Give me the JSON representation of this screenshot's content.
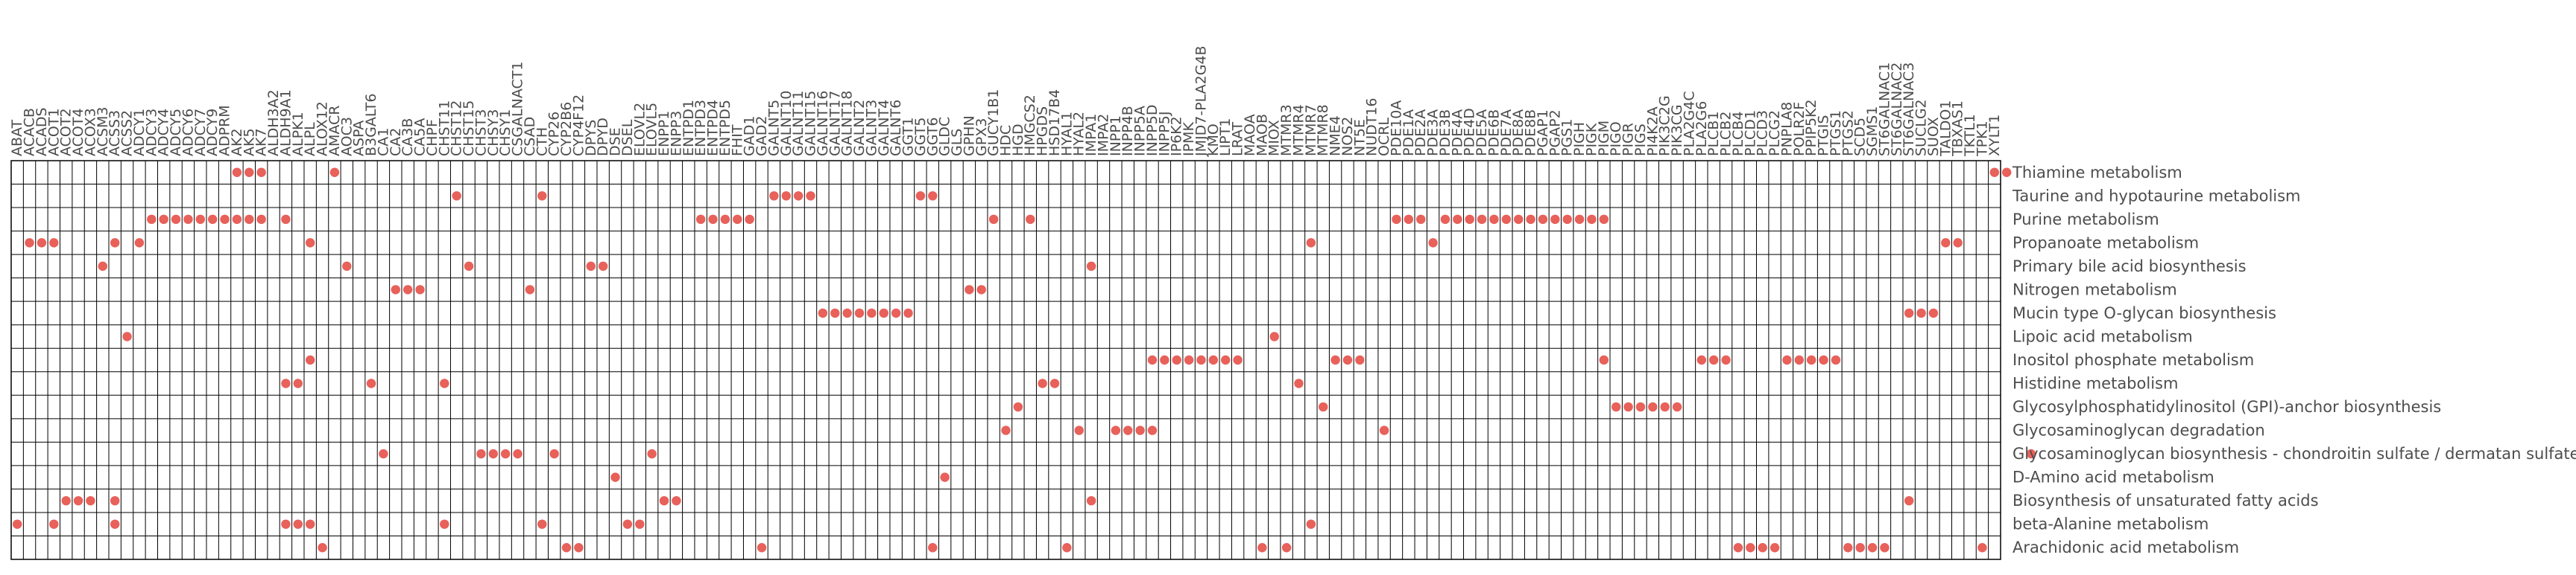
{
  "chart_data": {
    "type": "heatmap",
    "title": "",
    "xlabel": "",
    "ylabel": "",
    "grid": true,
    "legend": "none",
    "marker_color": "#e8615a",
    "x": [
      "ABAT",
      "ACACB",
      "ACADS",
      "ACOT1",
      "ACOT2",
      "ACOT4",
      "ACOX3",
      "ACSM3",
      "ACSS3",
      "ACSS2",
      "ADCY1",
      "ADCY3",
      "ADCY4",
      "ADCY5",
      "ADCY6",
      "ADCY7",
      "ADCY9",
      "ADPRM",
      "AK2",
      "AK5",
      "AK7",
      "ALDH3A2",
      "ALDH9A1",
      "ALPK1",
      "ALPL",
      "ALOX12",
      "AMACR",
      "AOC3",
      "ASPA",
      "B3GALT6",
      "CA1",
      "CA2",
      "CA3B",
      "CA5A",
      "CHPF",
      "CHST11",
      "CHST12",
      "CHST15",
      "CHST3",
      "CHSY3",
      "CHSY1",
      "CSGALNACT1",
      "CSAD",
      "CTH",
      "CYP26",
      "CYP2B6",
      "CYP4F12",
      "DPYS",
      "DPYD",
      "DSE",
      "DSEL",
      "ELOVL2",
      "ELOVL5",
      "ENPP1",
      "ENPP3",
      "ENTPD1",
      "ENTPD3",
      "ENTPD4",
      "ENTPD5",
      "FHIT",
      "GAD1",
      "GAD2",
      "GALNT5",
      "GALNT10",
      "GALNT11",
      "GALNT15",
      "GALNT16",
      "GALNT17",
      "GALNT18",
      "GALNT2",
      "GALNT3",
      "GALNT4",
      "GALNT6",
      "GGT1",
      "GGT5",
      "GGT6",
      "GLDC",
      "GLS",
      "GPHN",
      "GPX3",
      "GUCY1B1",
      "HDC",
      "HGD",
      "HMGCS2",
      "HPGDS",
      "HSD17B4",
      "HYAL1",
      "HYAL2",
      "IMPA1",
      "IMPA2",
      "INPP1",
      "INPP4B",
      "INPP5A",
      "INPP5D",
      "INPP5J",
      "IP6K2",
      "IPMK",
      "JMJD7-PLA2G4B",
      "KMO",
      "LIPT1",
      "LRAT",
      "MAOA",
      "MAOB",
      "MIOX",
      "MTMR3",
      "MTMR4",
      "MTMR7",
      "MTMR8",
      "NME4",
      "NOS2",
      "NT5E",
      "NUDT16",
      "OCRL",
      "PDE10A",
      "PDE1A",
      "PDE2A",
      "PDE3A",
      "PDE3B",
      "PDE4A",
      "PDE4D",
      "PDE5A",
      "PDE6B",
      "PDE7A",
      "PDE8A",
      "PDE8B",
      "PGAP1",
      "PGAP2",
      "PGS1",
      "PIGH",
      "PIGK",
      "PIGM",
      "PIGO",
      "PIGR",
      "PIGS",
      "PI4K2A",
      "PIK3C2G",
      "PIK3CG",
      "PLA2G4C",
      "PLA2G6",
      "PLCB1",
      "PLCB2",
      "PLCB4",
      "PLCD1",
      "PLCD3",
      "PLCG2",
      "PNPLA8",
      "POLR2F",
      "PPIP5K2",
      "PTGIS",
      "PTGS1",
      "PTGS2",
      "SCD5",
      "SGMS1",
      "ST6GALNAC1",
      "ST6GALNAC2",
      "ST6GALNAC3",
      "SUCLG2",
      "SUOX",
      "TALDO1",
      "TBXAS1",
      "TKTL1",
      "TPK1",
      "XYLT1"
    ],
    "y": [
      "Thiamine metabolism",
      "Taurine and hypotaurine metabolism",
      "Purine metabolism",
      "Propanoate metabolism",
      "Primary bile acid biosynthesis",
      "Nitrogen metabolism",
      "Mucin type O-glycan biosynthesis",
      "Lipoic acid metabolism",
      "Inositol phosphate metabolism",
      "Histidine metabolism",
      "Glycosylphosphatidylinositol (GPI)-anchor biosynthesis",
      "Glycosaminoglycan degradation",
      "Glycosaminoglycan biosynthesis - chondroitin sulfate / dermatan sulfate",
      "D-Amino acid metabolism",
      "Biosynthesis of unsaturated fatty acids",
      "beta-Alanine metabolism",
      "Arachidonic acid metabolism"
    ],
    "points": [
      [
        18,
        0
      ],
      [
        19,
        0
      ],
      [
        20,
        0
      ],
      [
        26,
        0
      ],
      [
        162,
        0
      ],
      [
        163,
        0
      ],
      [
        36,
        1
      ],
      [
        43,
        1
      ],
      [
        62,
        1
      ],
      [
        63,
        1
      ],
      [
        64,
        1
      ],
      [
        65,
        1
      ],
      [
        74,
        1
      ],
      [
        75,
        1
      ],
      [
        11,
        2
      ],
      [
        12,
        2
      ],
      [
        13,
        2
      ],
      [
        14,
        2
      ],
      [
        15,
        2
      ],
      [
        16,
        2
      ],
      [
        17,
        2
      ],
      [
        18,
        2
      ],
      [
        19,
        2
      ],
      [
        20,
        2
      ],
      [
        22,
        2
      ],
      [
        56,
        2
      ],
      [
        57,
        2
      ],
      [
        58,
        2
      ],
      [
        59,
        2
      ],
      [
        60,
        2
      ],
      [
        80,
        2
      ],
      [
        83,
        2
      ],
      [
        113,
        2
      ],
      [
        114,
        2
      ],
      [
        115,
        2
      ],
      [
        117,
        2
      ],
      [
        118,
        2
      ],
      [
        119,
        2
      ],
      [
        120,
        2
      ],
      [
        121,
        2
      ],
      [
        122,
        2
      ],
      [
        123,
        2
      ],
      [
        124,
        2
      ],
      [
        125,
        2
      ],
      [
        126,
        2
      ],
      [
        127,
        2
      ],
      [
        128,
        2
      ],
      [
        129,
        2
      ],
      [
        130,
        2
      ],
      [
        1,
        3
      ],
      [
        2,
        3
      ],
      [
        3,
        3
      ],
      [
        8,
        3
      ],
      [
        10,
        3
      ],
      [
        24,
        3
      ],
      [
        106,
        3
      ],
      [
        116,
        3
      ],
      [
        158,
        3
      ],
      [
        159,
        3
      ],
      [
        7,
        4
      ],
      [
        27,
        4
      ],
      [
        37,
        4
      ],
      [
        47,
        4
      ],
      [
        48,
        4
      ],
      [
        88,
        4
      ],
      [
        31,
        5
      ],
      [
        32,
        5
      ],
      [
        33,
        5
      ],
      [
        42,
        5
      ],
      [
        78,
        5
      ],
      [
        79,
        5
      ],
      [
        66,
        6
      ],
      [
        67,
        6
      ],
      [
        68,
        6
      ],
      [
        69,
        6
      ],
      [
        70,
        6
      ],
      [
        71,
        6
      ],
      [
        72,
        6
      ],
      [
        73,
        6
      ],
      [
        155,
        6
      ],
      [
        156,
        6
      ],
      [
        157,
        6
      ],
      [
        9,
        7
      ],
      [
        103,
        7
      ],
      [
        24,
        8
      ],
      [
        93,
        8
      ],
      [
        94,
        8
      ],
      [
        95,
        8
      ],
      [
        96,
        8
      ],
      [
        97,
        8
      ],
      [
        98,
        8
      ],
      [
        99,
        8
      ],
      [
        100,
        8
      ],
      [
        108,
        8
      ],
      [
        109,
        8
      ],
      [
        110,
        8
      ],
      [
        130,
        8
      ],
      [
        138,
        8
      ],
      [
        139,
        8
      ],
      [
        140,
        8
      ],
      [
        145,
        8
      ],
      [
        146,
        8
      ],
      [
        147,
        8
      ],
      [
        148,
        8
      ],
      [
        149,
        8
      ],
      [
        22,
        9
      ],
      [
        23,
        9
      ],
      [
        29,
        9
      ],
      [
        35,
        9
      ],
      [
        84,
        9
      ],
      [
        85,
        9
      ],
      [
        105,
        9
      ],
      [
        82,
        10
      ],
      [
        107,
        10
      ],
      [
        131,
        10
      ],
      [
        132,
        10
      ],
      [
        133,
        10
      ],
      [
        134,
        10
      ],
      [
        135,
        10
      ],
      [
        136,
        10
      ],
      [
        81,
        11
      ],
      [
        87,
        11
      ],
      [
        90,
        11
      ],
      [
        91,
        11
      ],
      [
        92,
        11
      ],
      [
        93,
        11
      ],
      [
        112,
        11
      ],
      [
        30,
        12
      ],
      [
        38,
        12
      ],
      [
        39,
        12
      ],
      [
        40,
        12
      ],
      [
        41,
        12
      ],
      [
        44,
        12
      ],
      [
        52,
        12
      ],
      [
        165,
        12
      ],
      [
        49,
        13
      ],
      [
        76,
        13
      ],
      [
        4,
        14
      ],
      [
        5,
        14
      ],
      [
        6,
        14
      ],
      [
        8,
        14
      ],
      [
        53,
        14
      ],
      [
        54,
        14
      ],
      [
        88,
        14
      ],
      [
        155,
        14
      ],
      [
        0,
        15
      ],
      [
        3,
        15
      ],
      [
        8,
        15
      ],
      [
        22,
        15
      ],
      [
        23,
        15
      ],
      [
        24,
        15
      ],
      [
        35,
        15
      ],
      [
        43,
        15
      ],
      [
        50,
        15
      ],
      [
        51,
        15
      ],
      [
        106,
        15
      ],
      [
        25,
        16
      ],
      [
        45,
        16
      ],
      [
        46,
        16
      ],
      [
        61,
        16
      ],
      [
        75,
        16
      ],
      [
        86,
        16
      ],
      [
        102,
        16
      ],
      [
        104,
        16
      ],
      [
        141,
        16
      ],
      [
        142,
        16
      ],
      [
        143,
        16
      ],
      [
        144,
        16
      ],
      [
        150,
        16
      ],
      [
        151,
        16
      ],
      [
        152,
        16
      ],
      [
        153,
        16
      ],
      [
        161,
        16
      ]
    ]
  }
}
